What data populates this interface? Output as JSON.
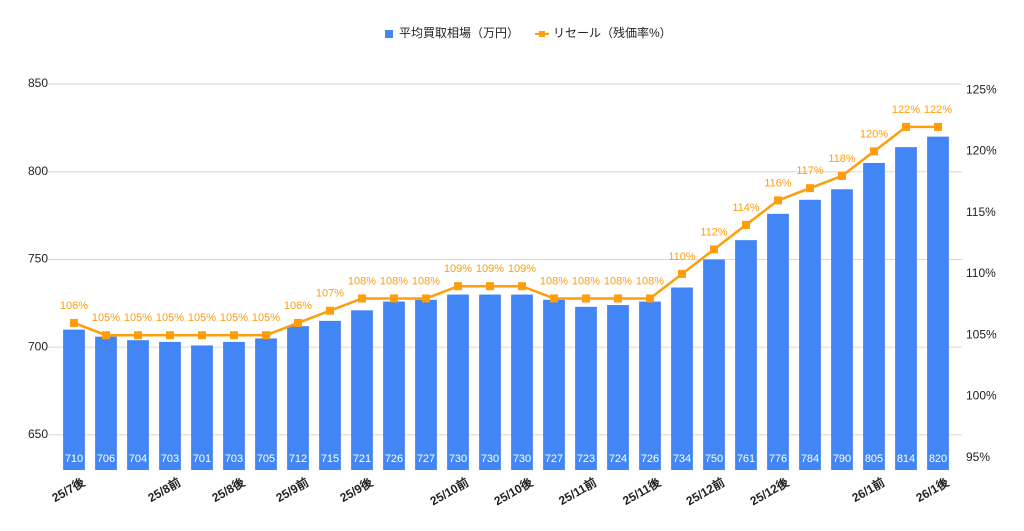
{
  "chart_data": {
    "type": "bar",
    "categories": [
      "25/7後",
      null,
      null,
      "25/8前",
      null,
      "25/8後",
      null,
      "25/9前",
      null,
      "25/9後",
      null,
      null,
      "25/10前",
      null,
      "25/10後",
      null,
      "25/11前",
      null,
      "25/11後",
      null,
      "25/12前",
      null,
      "25/12後",
      null,
      null,
      "26/1前",
      null,
      "26/1後"
    ],
    "series": [
      {
        "name": "平均買取相場（万円）",
        "color": "#4285f4",
        "type": "bar",
        "values": [
          710,
          706,
          704,
          703,
          701,
          703,
          705,
          712,
          715,
          721,
          726,
          727,
          730,
          730,
          730,
          727,
          723,
          724,
          726,
          734,
          750,
          761,
          776,
          784,
          790,
          805,
          814,
          820
        ]
      },
      {
        "name": "リセール（残価率%）",
        "color": "#ff9d0a",
        "type": "line",
        "axis": "y2",
        "values": [
          106,
          105,
          105,
          105,
          105,
          105,
          105,
          106,
          107,
          108,
          108,
          108,
          109,
          109,
          109,
          108,
          108,
          108,
          108,
          110,
          112,
          114,
          116,
          117,
          118,
          120,
          122,
          122
        ],
        "value_labels": [
          "106%",
          "105%",
          "105%",
          "105%",
          "105%",
          "105%",
          "105%",
          "106%",
          "107%",
          "108%",
          "108%",
          "108%",
          "109%",
          "109%",
          "109%",
          "108%",
          "108%",
          "108%",
          "108%",
          "110%",
          "112%",
          "114%",
          "116%",
          "117%",
          "118%",
          "120%",
          "122%",
          "122%"
        ]
      }
    ],
    "ylim": [
      630,
      850
    ],
    "yticks": [
      650,
      700,
      750,
      800,
      850
    ],
    "y2lim": [
      94,
      125.5
    ],
    "y2ticks": [
      {
        "value": 95,
        "label": "95%"
      },
      {
        "value": 100,
        "label": "100%"
      },
      {
        "value": 105,
        "label": "105%"
      },
      {
        "value": 110,
        "label": "110%"
      },
      {
        "value": 115,
        "label": "115%"
      },
      {
        "value": 120,
        "label": "120%"
      },
      {
        "value": 125,
        "label": "125%"
      }
    ],
    "grid": true,
    "legend": "top"
  }
}
